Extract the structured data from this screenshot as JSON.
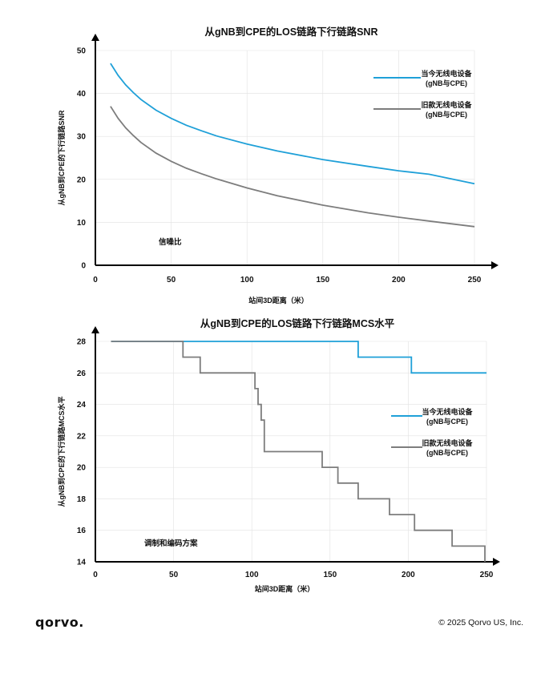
{
  "colors": {
    "current": "#1fa0d8",
    "legacy": "#7d7d7d",
    "axis": "#000000",
    "grid": "#e2e2e2"
  },
  "chart_data": [
    {
      "type": "line",
      "title": "从gNB到CPE的LOS链路下行链路SNR",
      "xlabel": "站间3D距离（米）",
      "ylabel": "从gNB到CPE的下行链路SNR",
      "xlim": [
        0,
        250
      ],
      "ylim": [
        0,
        50
      ],
      "xticks": [
        0,
        50,
        100,
        150,
        200,
        250
      ],
      "yticks": [
        0,
        10,
        20,
        30,
        40,
        50
      ],
      "annotation": "信噪比",
      "legend_position": "top-right",
      "series": [
        {
          "name": "当今无线电设备",
          "subname": "(gNB与CPE)",
          "color_key": "current",
          "x": [
            10,
            15,
            20,
            25,
            30,
            40,
            50,
            60,
            70,
            80,
            100,
            120,
            150,
            180,
            200,
            220,
            250
          ],
          "y": [
            47,
            44.2,
            42,
            40.2,
            38.6,
            36.1,
            34.2,
            32.6,
            31.3,
            30.1,
            28.2,
            26.6,
            24.6,
            23.0,
            22.0,
            21.2,
            19.0
          ]
        },
        {
          "name": "旧款无线电设备",
          "subname": "(gNB与CPE)",
          "color_key": "legacy",
          "x": [
            10,
            15,
            20,
            25,
            30,
            40,
            50,
            60,
            70,
            80,
            100,
            120,
            150,
            180,
            200,
            220,
            250
          ],
          "y": [
            37,
            34.2,
            32,
            30.2,
            28.6,
            26.1,
            24.2,
            22.6,
            21.3,
            20.1,
            18.0,
            16.2,
            14.0,
            12.2,
            11.2,
            10.3,
            9.0
          ]
        }
      ]
    },
    {
      "type": "line",
      "step": true,
      "title": "从gNB到CPE的LOS链路下行链路MCS水平",
      "xlabel": "站间3D距离（米）",
      "ylabel": "从gNB到CPE的下行链路MCS水平",
      "xlim": [
        0,
        250
      ],
      "ylim": [
        14,
        28
      ],
      "xticks": [
        0,
        50,
        100,
        150,
        200,
        250
      ],
      "yticks": [
        14,
        16,
        18,
        20,
        22,
        24,
        26,
        28
      ],
      "annotation": "调制和编码方案",
      "legend_position": "center-right",
      "series": [
        {
          "name": "当今无线电设备",
          "subname": "(gNB与CPE)",
          "color_key": "current",
          "x": [
            10,
            168,
            168,
            202,
            202,
            250
          ],
          "y": [
            28,
            28,
            27,
            27,
            26,
            26
          ]
        },
        {
          "name": "旧款无线电设备",
          "subname": "(gNB与CPE)",
          "color_key": "legacy",
          "x": [
            10,
            56,
            56,
            67,
            67,
            102,
            102,
            104,
            104,
            106,
            106,
            108,
            108,
            145,
            145,
            155,
            155,
            168,
            168,
            188,
            188,
            204,
            204,
            228,
            228,
            249,
            249
          ],
          "y": [
            28,
            28,
            27,
            27,
            26,
            26,
            25,
            25,
            24,
            24,
            23,
            23,
            21,
            21,
            20,
            20,
            19,
            19,
            18,
            18,
            17,
            17,
            16,
            16,
            15,
            15,
            14
          ]
        }
      ]
    }
  ],
  "footer": {
    "logo": "qorvo.",
    "copyright": "© 2025 Qorvo US, Inc."
  }
}
